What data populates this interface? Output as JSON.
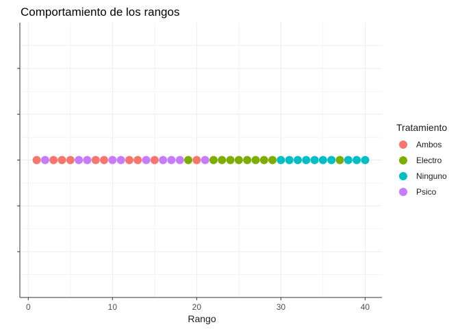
{
  "chart_data": {
    "type": "scatter",
    "title": "Comportamiento de los rangos",
    "xlabel": "Rango",
    "ylabel": "",
    "xlim": [
      -1,
      42
    ],
    "x_ticks": [
      0,
      10,
      20,
      30,
      40
    ],
    "x_tick_labels": [
      "0",
      "10",
      "20",
      "30",
      "40"
    ],
    "y_ticks_count": 5,
    "grid": true,
    "legend": {
      "title": "Tratamiento",
      "position": "right",
      "entries": [
        {
          "name": "Ambos",
          "color": "#F8766D"
        },
        {
          "name": "Electro",
          "color": "#7CAE00"
        },
        {
          "name": "Ninguno",
          "color": "#00BFC4"
        },
        {
          "name": "Psico",
          "color": "#C77CFF"
        }
      ]
    },
    "series": [
      {
        "name": "Ambos",
        "color": "#F8766D",
        "x": [
          1,
          3,
          4,
          5,
          8,
          9,
          12,
          13,
          15,
          20
        ]
      },
      {
        "name": "Electro",
        "color": "#7CAE00",
        "x": [
          19,
          22,
          23,
          24,
          25,
          26,
          27,
          28,
          29,
          37
        ]
      },
      {
        "name": "Ninguno",
        "color": "#00BFC4",
        "x": [
          30,
          31,
          32,
          33,
          34,
          35,
          36,
          38,
          39,
          40
        ]
      },
      {
        "name": "Psico",
        "color": "#C77CFF",
        "x": [
          2,
          6,
          7,
          10,
          11,
          14,
          16,
          17,
          18,
          21
        ]
      }
    ]
  }
}
